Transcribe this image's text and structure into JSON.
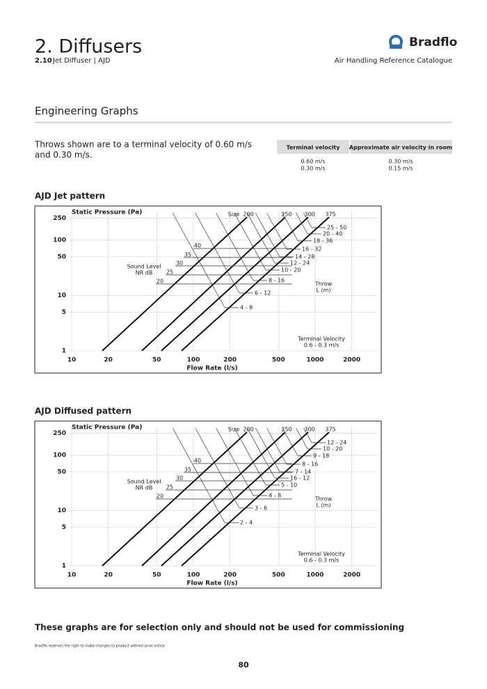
{
  "header": {
    "title": "2. Diffusers",
    "section_number": "2.10",
    "section_text": "Jet Diffuser  |  AJD",
    "brand": "Bradflo",
    "catalogue": "Air Handling Reference Catalogue"
  },
  "section_heading": "Engineering Graphs",
  "intro": [
    "Throws shown are to a terminal velocity of 0.60 m/s",
    "and 0.30 m/s."
  ],
  "velocity_table": {
    "headers": [
      "Terminal velocity",
      "Approximate air velocity in room"
    ],
    "rows": [
      [
        "0.60 m/s",
        "0.30 m/s"
      ],
      [
        "0.30 m/s",
        "0.15 m/s"
      ]
    ]
  },
  "graphs": [
    {
      "heading": "AJD Jet pattern",
      "y_label": "Static Pressure (Pa)",
      "x_label": "Flow Rate (l/s)",
      "xticks": [
        10,
        20,
        50,
        100,
        200,
        500,
        1000,
        2000
      ],
      "yticks": [
        1,
        5,
        10,
        50,
        100,
        250
      ],
      "size_label": "Size",
      "sizes": [
        200,
        250,
        300,
        375
      ],
      "nr_label": [
        "Sound Level",
        "NR  dB"
      ],
      "nr_levels": [
        40,
        35,
        30,
        25,
        20
      ],
      "throws": [
        "25 - 50",
        "20 - 40",
        "18 - 36",
        "16 - 32",
        "14 - 28",
        "12 - 24",
        "10 - 20",
        "8 - 16",
        "6 - 12",
        "4 - 8"
      ],
      "throw_label": [
        "Throw",
        "L  (m)"
      ],
      "velocity_note": [
        "Terminal Velocity",
        "0.6 - 0.3 m/s"
      ]
    },
    {
      "heading": "AJD Diffused pattern",
      "y_label": "Static Pressure (Pa)",
      "x_label": "Flow Rate (l/s)",
      "xticks": [
        10,
        20,
        50,
        100,
        200,
        500,
        1000,
        2000
      ],
      "yticks": [
        1,
        5,
        10,
        50,
        100,
        250
      ],
      "size_label": "Size",
      "sizes": [
        200,
        250,
        300,
        375
      ],
      "nr_label": [
        "Sound Level",
        "NR  dB"
      ],
      "nr_levels": [
        40,
        35,
        30,
        25,
        20
      ],
      "throws": [
        "12 - 24",
        "10 - 20",
        "9 - 18",
        "8 - 16",
        "7 - 14",
        "16 - 12",
        "5 - 10",
        "4 - 8",
        "3 - 6",
        "2 - 4"
      ],
      "throw_label": [
        "Throw",
        "L  (m)"
      ],
      "velocity_note": [
        "Terminal Velocity",
        "0.6 - 0.3 m/s"
      ]
    }
  ],
  "footer": {
    "note": "These graphs are for selection only and should not be used for commissioning",
    "disclaimer": "Bradflo reserves the right to make changes to product without prior notice",
    "page": "80"
  }
}
